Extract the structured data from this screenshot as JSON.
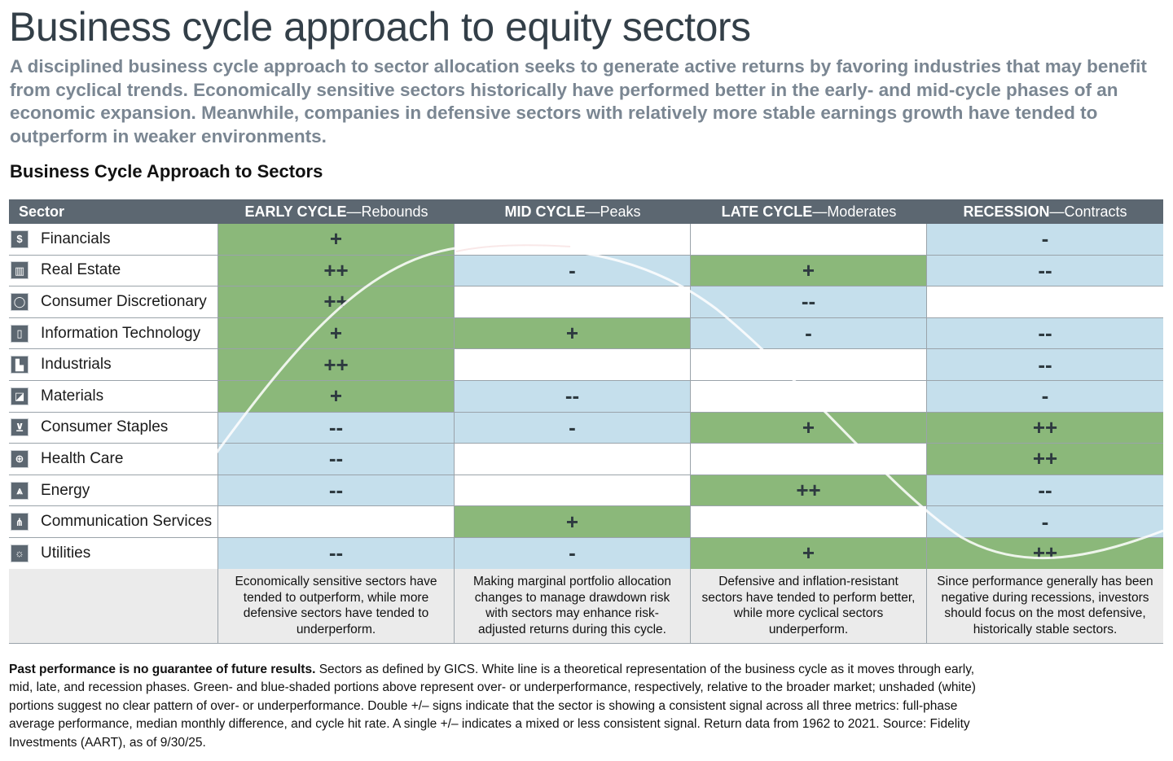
{
  "title": "Business cycle approach to equity sectors",
  "subtitle": "A disciplined business cycle approach to sector allocation seeks to generate active returns by favoring industries that may benefit from cyclical trends. Economically sensitive sectors historically have performed better in the early- and mid-cycle phases of an economic expansion. Meanwhile, companies in defensive sectors with relatively more stable earnings growth have tended to outperform in weaker environments.",
  "chart_heading": "Business Cycle Approach to Sectors",
  "colors": {
    "header_bg": "#5c6771",
    "overweight": "#8bb87a",
    "underweight": "#c5dfec",
    "neutral": "#ffffff",
    "note_bg": "#ebebeb",
    "curve": "#ffffff"
  },
  "chart_data": {
    "type": "table",
    "title": "Business Cycle Approach to Sectors",
    "header": {
      "sector": "Sector",
      "phases": [
        {
          "bold": "EARLY CYCLE",
          "rest": "—Rebounds"
        },
        {
          "bold": "MID CYCLE",
          "rest": "—Peaks"
        },
        {
          "bold": "LATE CYCLE",
          "rest": "—Moderates"
        },
        {
          "bold": "RECESSION",
          "rest": "—Contracts"
        }
      ]
    },
    "rows": [
      {
        "sector": "Financials",
        "icon": "money-icon",
        "signals": [
          "+",
          "",
          "",
          "-"
        ]
      },
      {
        "sector": "Real Estate",
        "icon": "building-icon",
        "signals": [
          "++",
          "-",
          "+",
          "--"
        ]
      },
      {
        "sector": "Consumer Discretionary",
        "icon": "ring-icon",
        "signals": [
          "++",
          "",
          "--",
          ""
        ]
      },
      {
        "sector": "Information Technology",
        "icon": "phone-icon",
        "signals": [
          "+",
          "+",
          "-",
          "--"
        ]
      },
      {
        "sector": "Industrials",
        "icon": "factory-icon",
        "signals": [
          "++",
          "",
          "",
          "--"
        ]
      },
      {
        "sector": "Materials",
        "icon": "bucket-icon",
        "signals": [
          "+",
          "--",
          "",
          "-"
        ]
      },
      {
        "sector": "Consumer Staples",
        "icon": "cart-icon",
        "signals": [
          "--",
          "-",
          "+",
          "++"
        ]
      },
      {
        "sector": "Health Care",
        "icon": "medical-icon",
        "signals": [
          "--",
          "",
          "",
          "++"
        ]
      },
      {
        "sector": "Energy",
        "icon": "derrick-icon",
        "signals": [
          "--",
          "",
          "++",
          "--"
        ]
      },
      {
        "sector": "Communication Services",
        "icon": "antenna-icon",
        "signals": [
          "",
          "+",
          "",
          "-"
        ]
      },
      {
        "sector": "Utilities",
        "icon": "lightbulb-icon",
        "signals": [
          "--",
          "-",
          "+",
          "++"
        ]
      }
    ],
    "notes": [
      "Economically sensitive sectors have tended to outperform, while more defensive sectors have tended to underperform.",
      "Making marginal portfolio allocation changes to manage drawdown risk with sectors may enhance risk-adjusted returns during this cycle.",
      "Defensive and inflation-resistant sectors have tended to perform better, while more cyclical sectors underperform.",
      "Since performance generally has been negative during recessions, investors should focus on the most defensive, historically stable sectors."
    ]
  },
  "footnote": {
    "bold": "Past performance is no guarantee of future results.",
    "text": " Sectors as defined by GICS. White line is a theoretical representation of the business cycle as it moves through early, mid, late, and recession phases. Green- and blue-shaded portions above represent over- or underperformance, respectively, relative to the broader market; unshaded (white) portions suggest no clear pattern of over- or underperformance. Double +/– signs indicate that the sector is showing a consistent signal across all three metrics: full-phase average performance, median monthly difference, and cycle hit rate. A single +/– indicates a mixed or less consistent signal. Return data from 1962 to 2021. Source: Fidelity Investments (AART), as of 9/30/25."
  }
}
